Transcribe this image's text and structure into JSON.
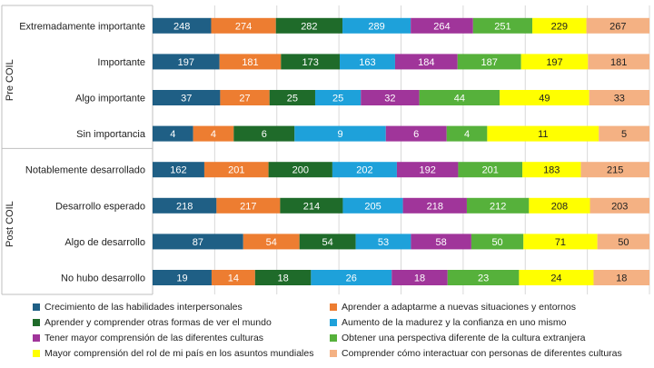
{
  "chart_data": {
    "type": "bar",
    "orientation": "horizontal",
    "stacking": "percent",
    "title": "",
    "xlabel": "",
    "ylabel": "",
    "grid": true,
    "legend_position": "bottom",
    "groups": [
      {
        "label": "Pre COIL",
        "categories": [
          "Extremadamente importante",
          "Importante",
          "Algo importante",
          "Sin importancia"
        ]
      },
      {
        "label": "Post COIL",
        "categories": [
          "Notablemente desarrollado",
          "Desarrollo esperado",
          "Algo de desarrollo",
          "No hubo desarrollo"
        ]
      }
    ],
    "categories": [
      "Extremadamente importante",
      "Importante",
      "Algo importante",
      "Sin importancia",
      "Notablemente desarrollado",
      "Desarrollo esperado",
      "Algo de desarrollo",
      "No hubo desarrollo"
    ],
    "series": [
      {
        "name": "Crecimiento de las habilidades interpersonales",
        "color": "#1f5f85",
        "label_color": "#ffffff",
        "values": [
          248,
          197,
          37,
          4,
          162,
          218,
          87,
          19
        ]
      },
      {
        "name": "Aprender a adaptarme a nuevas situaciones y entornos",
        "color": "#ed7d31",
        "label_color": "#ffffff",
        "values": [
          274,
          181,
          27,
          4,
          201,
          217,
          54,
          14
        ]
      },
      {
        "name": "Aprender y comprender otras formas de ver el mundo",
        "color": "#1f6b2a",
        "label_color": "#ffffff",
        "values": [
          282,
          173,
          25,
          6,
          200,
          214,
          54,
          18
        ]
      },
      {
        "name": "Aumento de la madurez y la confianza en uno mismo",
        "color": "#1ea1da",
        "label_color": "#ffffff",
        "values": [
          289,
          163,
          25,
          9,
          202,
          205,
          53,
          26
        ]
      },
      {
        "name": "Tener mayor comprensión de las diferentes culturas",
        "color": "#a0359a",
        "label_color": "#ffffff",
        "values": [
          264,
          184,
          32,
          6,
          192,
          218,
          58,
          18
        ]
      },
      {
        "name": "Obtener una perspectiva diferente de la cultura extranjera",
        "color": "#56b13b",
        "label_color": "#ffffff",
        "values": [
          251,
          187,
          44,
          4,
          201,
          212,
          50,
          23
        ]
      },
      {
        "name": "Mayor comprensión del rol de mi país en los asuntos mundiales",
        "color": "#ffff00",
        "label_color": "#222222",
        "values": [
          229,
          197,
          49,
          11,
          183,
          208,
          71,
          24
        ]
      },
      {
        "name": "Comprender cómo interactuar con personas de diferentes culturas",
        "color": "#f4b183",
        "label_color": "#222222",
        "values": [
          267,
          181,
          33,
          5,
          215,
          203,
          50,
          18
        ]
      }
    ]
  }
}
